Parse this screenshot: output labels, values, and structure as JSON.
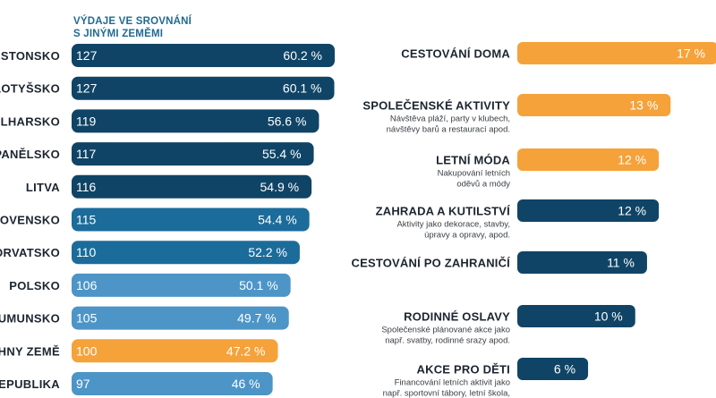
{
  "left_heading": "VÝDAJE VE SROVNÁNÍ\nS JINÝMI ZEMĚMI",
  "colors": {
    "dark_navy": "#0f4466",
    "medium_blue": "#1b6c9b",
    "light_blue": "#4d95c7",
    "orange": "#f5a23b",
    "text_dark": "#1c2530"
  },
  "chart_data": [
    {
      "type": "bar",
      "orientation": "horizontal",
      "series": [
        {
          "values_index": [
            127,
            127,
            119,
            117,
            116,
            115,
            110,
            106,
            105,
            100,
            97
          ]
        },
        {
          "values_percent": [
            60.2,
            60.1,
            56.6,
            55.4,
            54.9,
            54.4,
            52.2,
            50.1,
            49.7,
            47.2,
            46
          ]
        }
      ],
      "rows": [
        {
          "country": "ESTONSKO",
          "index": "127",
          "pct": "60.2 %",
          "value": 60.2,
          "color": "dark_navy"
        },
        {
          "country": "LOTYŠSKO",
          "index": "127",
          "pct": "60.1 %",
          "value": 60.1,
          "color": "dark_navy"
        },
        {
          "country": "ULHARSKO",
          "index": "119",
          "pct": "56.6 %",
          "value": 56.6,
          "color": "dark_navy"
        },
        {
          "country": "PANĚLSKO",
          "index": "117",
          "pct": "55.4 %",
          "value": 55.4,
          "color": "dark_navy"
        },
        {
          "country": "LITVA",
          "index": "116",
          "pct": "54.9 %",
          "value": 54.9,
          "color": "dark_navy"
        },
        {
          "country": "LOVENSKO",
          "index": "115",
          "pct": "54.4 %",
          "value": 54.4,
          "color": "medium_blue"
        },
        {
          "country": "ORVATSKO",
          "index": "110",
          "pct": "52.2 %",
          "value": 52.2,
          "color": "medium_blue"
        },
        {
          "country": "POLSKO",
          "index": "106",
          "pct": "50.1 %",
          "value": 50.1,
          "color": "light_blue"
        },
        {
          "country": "UMUNSKO",
          "index": "105",
          "pct": "49.7 %",
          "value": 49.7,
          "color": "light_blue"
        },
        {
          "country": "HNY ZEMĚ",
          "index": "100",
          "pct": "47.2 %",
          "value": 47.2,
          "color": "orange"
        },
        {
          "country": "EPUBLIKA",
          "index": "97",
          "pct": "46 %",
          "value": 46,
          "color": "light_blue"
        }
      ]
    },
    {
      "type": "bar",
      "orientation": "horizontal",
      "rows": [
        {
          "category": "CESTOVÁNÍ DOMA",
          "description": [],
          "pct": "17 %",
          "value": 17,
          "color": "orange"
        },
        {
          "category": "SPOLEČENSKÉ AKTIVITY",
          "description": [
            "Návštěva pláží, party v klubech,",
            "návštěvy barů a restaurací apod."
          ],
          "pct": "13 %",
          "value": 13,
          "color": "orange"
        },
        {
          "category": "LETNÍ MÓDA",
          "description": [
            "Nakupování letních",
            "oděvů a módy"
          ],
          "pct": "12 %",
          "value": 12,
          "color": "orange"
        },
        {
          "category": "ZAHRADA A KUTILSTVÍ",
          "description": [
            "Aktivity jako dekorace, stavby,",
            "úpravy a opravy, apod."
          ],
          "pct": "12 %",
          "value": 12,
          "color": "dark_navy"
        },
        {
          "category": "CESTOVÁNÍ PO ZAHRANIČÍ",
          "description": [],
          "pct": "11 %",
          "value": 11,
          "color": "dark_navy"
        },
        {
          "category": "RODINNÉ OSLAVY",
          "description": [
            "Společenské plánované akce jako",
            "např. svatby, rodinné srazy apod."
          ],
          "pct": "10 %",
          "value": 10,
          "color": "dark_navy"
        },
        {
          "category": "AKCE PRO DĚTI",
          "description": [
            "Financování letních aktivit jako",
            "např. sportovní tábory, letní škola,"
          ],
          "pct": "6 %",
          "value": 6,
          "color": "dark_navy"
        }
      ]
    }
  ]
}
